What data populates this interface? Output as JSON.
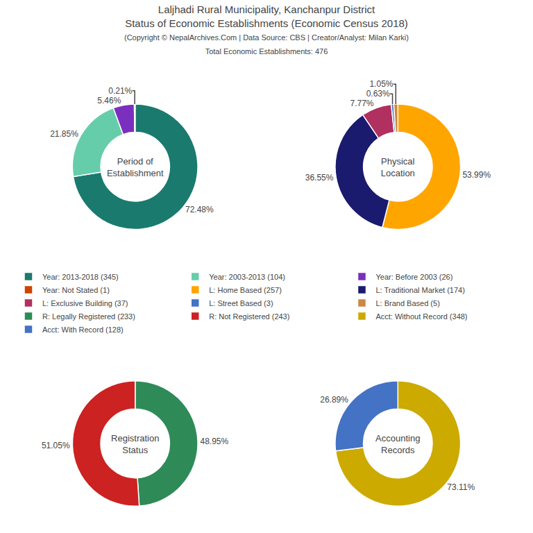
{
  "title": "Laljhadi Rural Municipality, Kanchanpur District\nStatus of Economic Establishments (Economic Census 2018)",
  "subtitle": "(Copyright © NepalArchives.Com | Data Source: CBS | Creator/Analyst: Milan Karki)\nTotal Economic Establishments: 476",
  "legend": "center",
  "chart_data": [
    {
      "type": "pie",
      "title": "Period of\nEstablishment",
      "categories": [
        "Year: 2013-2018 (345)",
        "Year: 2003-2013 (104)",
        "Year: Before 2003 (26)",
        "Year: Not Stated (1)"
      ],
      "values": [
        72.48,
        21.85,
        5.46,
        0.21
      ],
      "value_labels": [
        "72.48%",
        "21.85%",
        "5.46%",
        "0.21%"
      ],
      "colors": [
        "#1a7a6e",
        "#66cdaa",
        "#7b2fbe",
        "#cc4400"
      ],
      "data_labels": true
    },
    {
      "type": "pie",
      "title": "Physical\nLocation",
      "categories": [
        "L: Home Based (257)",
        "L: Traditional Market (174)",
        "L: Exclusive Building (37)",
        "L: Street Based (3)",
        "L: Brand Based (5)"
      ],
      "values": [
        53.99,
        36.55,
        7.77,
        0.63,
        1.05
      ],
      "value_labels": [
        "53.99%",
        "36.55%",
        "7.77%",
        "0.63%",
        "1.05%"
      ],
      "colors": [
        "#FFA500",
        "#1a1a6e",
        "#b03060",
        "#4472c4",
        "#cc8844"
      ],
      "data_labels": true
    },
    {
      "type": "pie",
      "title": "Registration\nStatus",
      "categories": [
        "R: Legally Registered (233)",
        "R: Not Registered (243)"
      ],
      "values": [
        48.95,
        51.05
      ],
      "value_labels": [
        "48.95%",
        "51.05%"
      ],
      "colors": [
        "#2e8b57",
        "#cc2222"
      ],
      "data_labels": true
    },
    {
      "type": "pie",
      "title": "Accounting\nRecords",
      "categories": [
        "Acct: Without Record (348)",
        "Acct: With Record (128)"
      ],
      "values": [
        73.11,
        26.89
      ],
      "value_labels": [
        "73.11%",
        "26.89%"
      ],
      "colors": [
        "#ccaa00",
        "#4472c4"
      ],
      "data_labels": true
    }
  ]
}
